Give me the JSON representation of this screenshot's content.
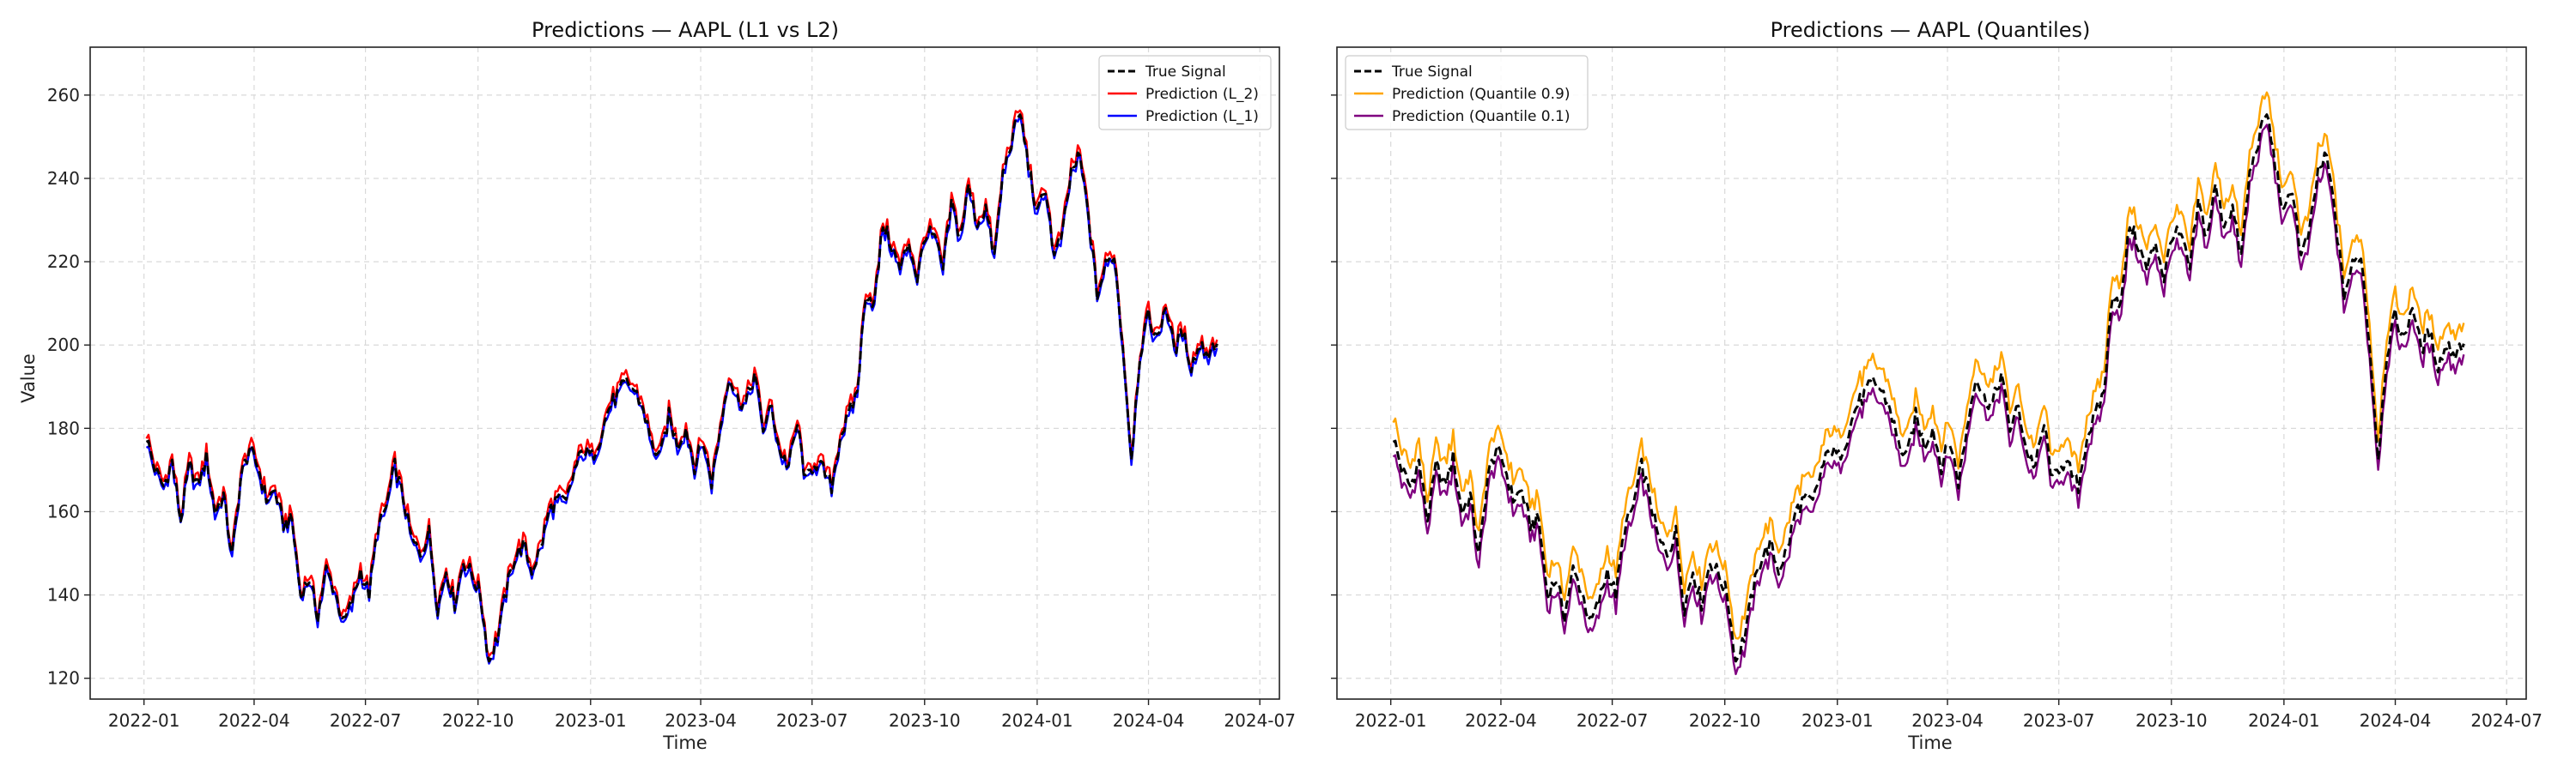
{
  "chart_data": [
    {
      "type": "line",
      "title": "Predictions — AAPL (L1 vs L2)",
      "xlabel": "Time",
      "ylabel": "Value",
      "xlim": [
        "2021-11-18",
        "2024-07-17"
      ],
      "ylim": [
        115,
        271.5
      ],
      "yticks": [
        120,
        140,
        160,
        180,
        200,
        220,
        240,
        260
      ],
      "xticks": [
        "2022-01",
        "2022-04",
        "2022-07",
        "2022-10",
        "2023-01",
        "2023-04",
        "2023-07",
        "2023-10",
        "2024-01",
        "2024-04",
        "2024-07"
      ],
      "grid": true,
      "legend_position": "top-right",
      "series": [
        {
          "name": "True Signal",
          "color": "#000000",
          "style": "dashed"
        },
        {
          "name": "Prediction (L_2)",
          "color": "#ff0000",
          "style": "solid",
          "offset": 1.2
        },
        {
          "name": "Prediction (L_1)",
          "color": "#0000ff",
          "style": "solid",
          "offset": -0.8
        }
      ]
    },
    {
      "type": "line",
      "title": "Predictions — AAPL (Quantiles)",
      "xlabel": "Time",
      "ylabel": "",
      "xlim": [
        "2021-11-18",
        "2024-07-17"
      ],
      "ylim": [
        115,
        271.5
      ],
      "yticks": [
        120,
        140,
        160,
        180,
        200,
        220,
        240,
        260
      ],
      "xticks": [
        "2022-01",
        "2022-04",
        "2022-07",
        "2022-10",
        "2023-01",
        "2023-04",
        "2023-07",
        "2023-10",
        "2024-01",
        "2024-04",
        "2024-07"
      ],
      "grid": true,
      "legend_position": "top-left",
      "series": [
        {
          "name": "True Signal",
          "color": "#000000",
          "style": "dashed"
        },
        {
          "name": "Prediction (Quantile 0.9)",
          "color": "#ffa500",
          "style": "solid",
          "offset": 5
        },
        {
          "name": "Prediction (Quantile 0.1)",
          "color": "#800080",
          "style": "solid",
          "offset": -3
        }
      ]
    }
  ],
  "true_signal": {
    "x": [
      "2022-01-03",
      "2022-01-10",
      "2022-01-17",
      "2022-01-24",
      "2022-01-31",
      "2022-02-07",
      "2022-02-14",
      "2022-02-21",
      "2022-02-28",
      "2022-03-07",
      "2022-03-14",
      "2022-03-21",
      "2022-03-28",
      "2022-04-04",
      "2022-04-11",
      "2022-04-18",
      "2022-04-25",
      "2022-05-02",
      "2022-05-09",
      "2022-05-16",
      "2022-05-23",
      "2022-05-30",
      "2022-06-06",
      "2022-06-13",
      "2022-06-20",
      "2022-06-27",
      "2022-07-04",
      "2022-07-11",
      "2022-07-18",
      "2022-07-25",
      "2022-08-01",
      "2022-08-08",
      "2022-08-15",
      "2022-08-22",
      "2022-08-29",
      "2022-09-05",
      "2022-09-12",
      "2022-09-19",
      "2022-09-26",
      "2022-10-03",
      "2022-10-10",
      "2022-10-17",
      "2022-10-24",
      "2022-10-31",
      "2022-11-07",
      "2022-11-14",
      "2022-11-21",
      "2022-11-28",
      "2022-12-05",
      "2022-12-12",
      "2022-12-19",
      "2022-12-26",
      "2023-01-02",
      "2023-01-09",
      "2023-01-16",
      "2023-01-23",
      "2023-01-30",
      "2023-02-06",
      "2023-02-13",
      "2023-02-20",
      "2023-02-27",
      "2023-03-06",
      "2023-03-13",
      "2023-03-20",
      "2023-03-27",
      "2023-04-03",
      "2023-04-10",
      "2023-04-17",
      "2023-04-24",
      "2023-05-01",
      "2023-05-08",
      "2023-05-15",
      "2023-05-22",
      "2023-05-29",
      "2023-06-05",
      "2023-06-12",
      "2023-06-19",
      "2023-06-26",
      "2023-07-03",
      "2023-07-10",
      "2023-07-17",
      "2023-07-24",
      "2023-07-31",
      "2023-08-07",
      "2023-08-14",
      "2023-08-21",
      "2023-08-28",
      "2023-09-04",
      "2023-09-11",
      "2023-09-18",
      "2023-09-25",
      "2023-10-02",
      "2023-10-09",
      "2023-10-16",
      "2023-10-23",
      "2023-10-30",
      "2023-11-06",
      "2023-11-13",
      "2023-11-20",
      "2023-11-27",
      "2023-12-04",
      "2023-12-11",
      "2023-12-18",
      "2023-12-25",
      "2024-01-01",
      "2024-01-08",
      "2024-01-15",
      "2024-01-22",
      "2024-01-29",
      "2024-02-05",
      "2024-02-12",
      "2024-02-19",
      "2024-02-26",
      "2024-03-04",
      "2024-03-11",
      "2024-03-18",
      "2024-03-25",
      "2024-04-01",
      "2024-04-08",
      "2024-04-15",
      "2024-04-22",
      "2024-04-29",
      "2024-05-06",
      "2024-05-13",
      "2024-05-20",
      "2024-05-27"
    ],
    "y": [
      178,
      170,
      166,
      172,
      158,
      171,
      166,
      173,
      160,
      164,
      149,
      168,
      175,
      171,
      163,
      165,
      157,
      158,
      140,
      144,
      135,
      146,
      141,
      133,
      138,
      146,
      140,
      156,
      161,
      171,
      163,
      153,
      150,
      155,
      137,
      146,
      138,
      148,
      145,
      140,
      124,
      130,
      141,
      149,
      152,
      146,
      151,
      160,
      163,
      162,
      170,
      175,
      173,
      178,
      185,
      188,
      191,
      189,
      185,
      176,
      173,
      183,
      176,
      180,
      171,
      177,
      167,
      180,
      193,
      187,
      186,
      193,
      180,
      185,
      174,
      171,
      181,
      167,
      172,
      170,
      166,
      178,
      183,
      189,
      213,
      210,
      229,
      224,
      218,
      225,
      216,
      227,
      226,
      218,
      234,
      226,
      238,
      229,
      233,
      221,
      241,
      249,
      256,
      243,
      231,
      238,
      221,
      227,
      242,
      245,
      231,
      212,
      219,
      222,
      200,
      173,
      198,
      207,
      201,
      210,
      199,
      203,
      195,
      200,
      198,
      201
    ]
  }
}
